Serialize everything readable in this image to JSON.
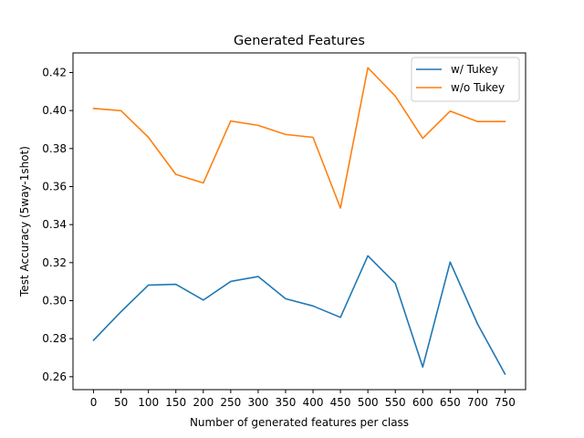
{
  "chart_data": {
    "type": "line",
    "title": "Generated Features",
    "xlabel": "Number of generated features per class",
    "ylabel": "Test Accuracy (5way-1shot)",
    "x": [
      0,
      50,
      100,
      150,
      200,
      250,
      300,
      350,
      400,
      450,
      500,
      550,
      600,
      650,
      700,
      750
    ],
    "x_tick_labels": [
      "0",
      "50",
      "100",
      "150",
      "200",
      "250",
      "300",
      "350",
      "400",
      "450",
      "500",
      "550",
      "600",
      "650",
      "700",
      "750"
    ],
    "y_ticks": [
      0.26,
      0.28,
      0.3,
      0.32,
      0.34,
      0.36,
      0.38,
      0.4,
      0.42
    ],
    "y_tick_labels": [
      "0.26",
      "0.28",
      "0.30",
      "0.32",
      "0.34",
      "0.36",
      "0.38",
      "0.40",
      "0.42"
    ],
    "xlim": [
      -37.5,
      787.5
    ],
    "ylim": [
      0.2532,
      0.4303
    ],
    "grid": false,
    "legend_position": "top-right",
    "series": [
      {
        "name": "w/ Tukey",
        "color": "#1f77b4",
        "values": [
          0.2792,
          0.2942,
          0.3082,
          0.3086,
          0.3003,
          0.3101,
          0.3127,
          0.301,
          0.2972,
          0.2912,
          0.3236,
          0.3091,
          0.2651,
          0.3203,
          0.2877,
          0.2614
        ]
      },
      {
        "name": "w/o Tukey",
        "color": "#ff7f0e",
        "values": [
          0.4011,
          0.3999,
          0.3859,
          0.3664,
          0.3619,
          0.3945,
          0.3922,
          0.3874,
          0.3859,
          0.3487,
          0.4225,
          0.4076,
          0.3854,
          0.3997,
          0.3942,
          0.3942
        ]
      }
    ]
  }
}
